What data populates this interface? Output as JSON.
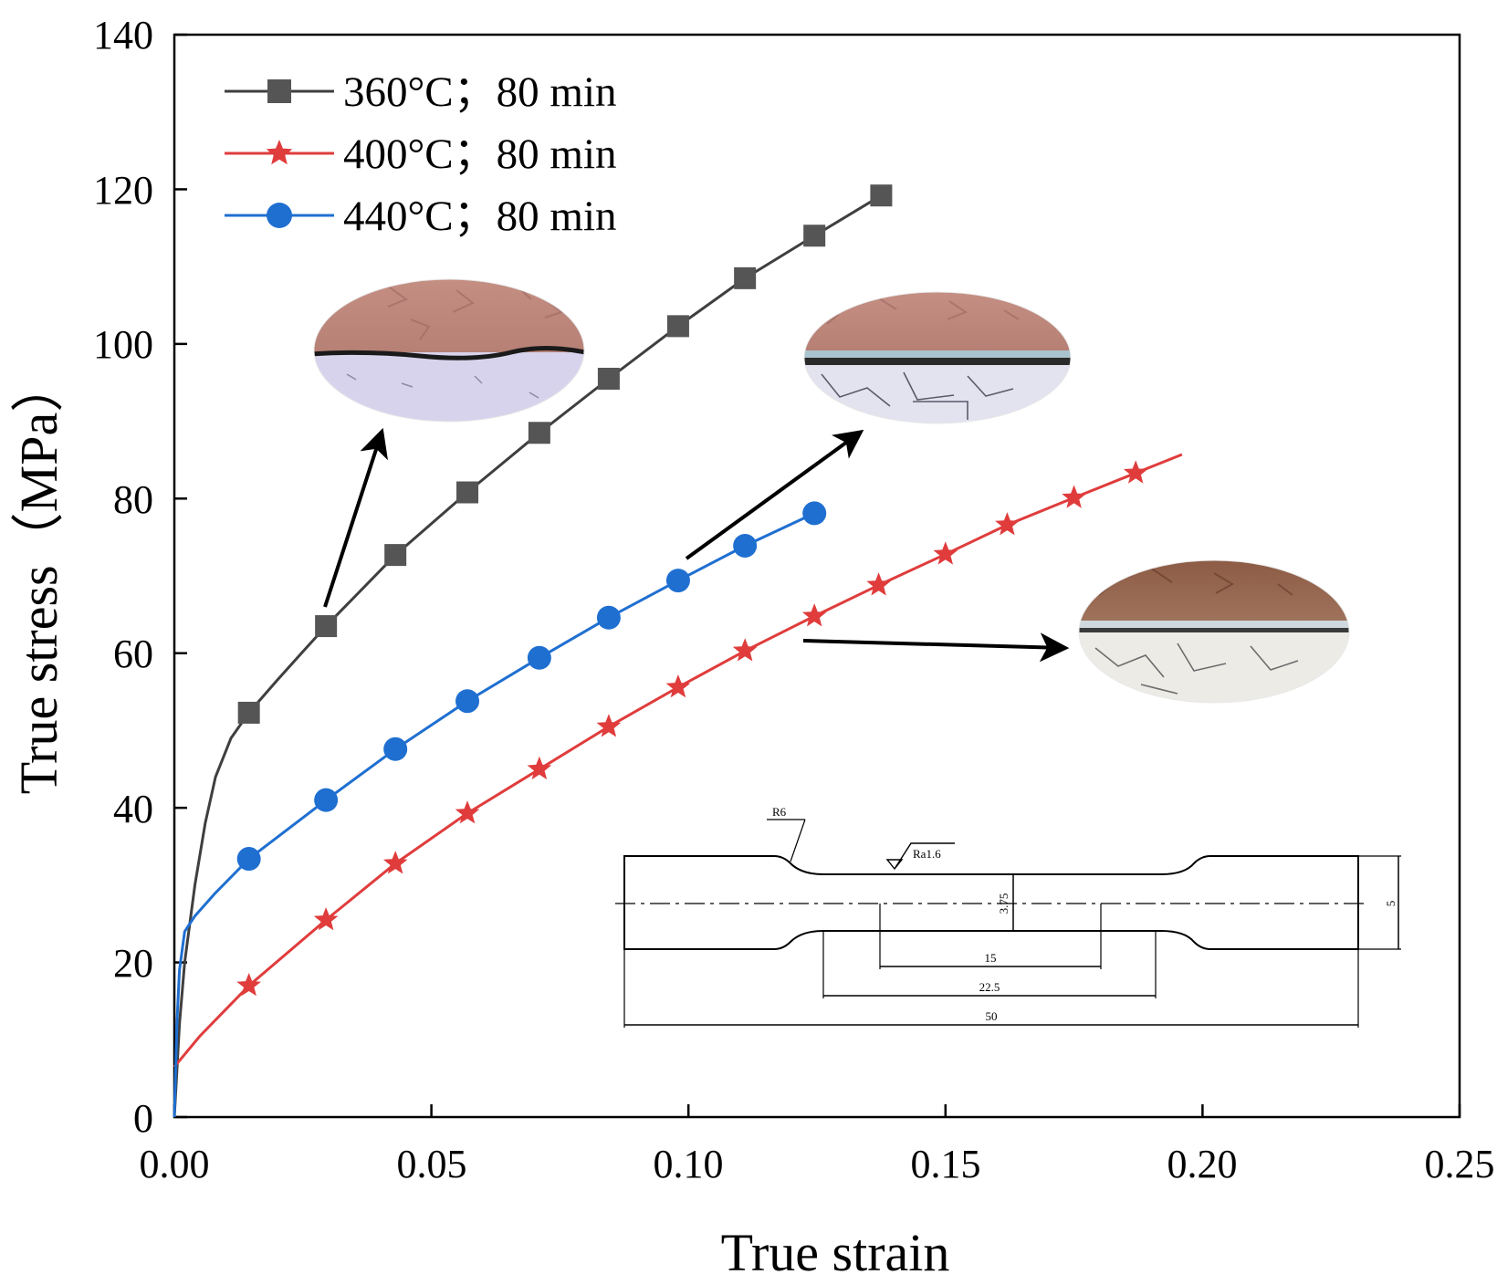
{
  "chart_data": {
    "type": "line",
    "xlabel": "True strain",
    "ylabel": "True stress（MPa）",
    "xlim": [
      0,
      0.25
    ],
    "ylim": [
      0,
      140
    ],
    "xticks": [
      "0.00",
      "0.05",
      "0.10",
      "0.15",
      "0.20",
      "0.25"
    ],
    "yticks": [
      "0",
      "20",
      "40",
      "60",
      "80",
      "100",
      "120",
      "140"
    ],
    "legend_position": "top-left",
    "series": [
      {
        "name": "360°C；80 min",
        "color": "#3f3f3f",
        "marker": "square",
        "curve": [
          [
            0,
            0
          ],
          [
            0.001,
            12
          ],
          [
            0.002,
            20
          ],
          [
            0.004,
            30
          ],
          [
            0.006,
            38
          ],
          [
            0.008,
            44
          ],
          [
            0.011,
            49
          ],
          [
            0.0145,
            52.3
          ],
          [
            0.02,
            56.5
          ],
          [
            0.025,
            60.2
          ],
          [
            0.0295,
            63.5
          ],
          [
            0.043,
            72.7
          ],
          [
            0.057,
            80.8
          ],
          [
            0.071,
            88.5
          ],
          [
            0.0845,
            95.5
          ],
          [
            0.098,
            102.3
          ],
          [
            0.111,
            108.5
          ],
          [
            0.1245,
            114
          ],
          [
            0.1375,
            119.2
          ]
        ],
        "markers": [
          [
            0.0145,
            52.3
          ],
          [
            0.0295,
            63.5
          ],
          [
            0.043,
            72.7
          ],
          [
            0.057,
            80.8
          ],
          [
            0.071,
            88.5
          ],
          [
            0.0845,
            95.5
          ],
          [
            0.098,
            102.3
          ],
          [
            0.111,
            108.5
          ],
          [
            0.1245,
            114
          ],
          [
            0.1375,
            119.2
          ]
        ]
      },
      {
        "name": "400°C；80 min",
        "color": "#e03c3c",
        "marker": "star",
        "curve": [
          [
            0,
            6.5
          ],
          [
            0.005,
            10.5
          ],
          [
            0.0145,
            17
          ],
          [
            0.0295,
            25.5
          ],
          [
            0.043,
            32.8
          ],
          [
            0.057,
            39.3
          ],
          [
            0.071,
            45
          ],
          [
            0.0845,
            50.5
          ],
          [
            0.098,
            55.6
          ],
          [
            0.111,
            60.3
          ],
          [
            0.1245,
            64.8
          ],
          [
            0.137,
            68.8
          ],
          [
            0.15,
            72.8
          ],
          [
            0.162,
            76.6
          ],
          [
            0.175,
            80.1
          ],
          [
            0.187,
            83.3
          ],
          [
            0.196,
            85.7
          ]
        ],
        "markers": [
          [
            0.0145,
            17
          ],
          [
            0.0295,
            25.5
          ],
          [
            0.043,
            32.8
          ],
          [
            0.057,
            39.3
          ],
          [
            0.071,
            45
          ],
          [
            0.0845,
            50.5
          ],
          [
            0.098,
            55.6
          ],
          [
            0.111,
            60.3
          ],
          [
            0.1245,
            64.8
          ],
          [
            0.137,
            68.8
          ],
          [
            0.15,
            72.8
          ],
          [
            0.162,
            76.6
          ],
          [
            0.175,
            80.1
          ],
          [
            0.187,
            83.3
          ]
        ]
      },
      {
        "name": "440°C；80 min",
        "color": "#1f6fd1",
        "marker": "circle",
        "curve": [
          [
            0,
            0
          ],
          [
            0.0005,
            12
          ],
          [
            0.001,
            19
          ],
          [
            0.002,
            24
          ],
          [
            0.004,
            26
          ],
          [
            0.008,
            29
          ],
          [
            0.0145,
            33.4
          ],
          [
            0.0295,
            41
          ],
          [
            0.043,
            47.6
          ],
          [
            0.057,
            53.8
          ],
          [
            0.071,
            59.4
          ],
          [
            0.0845,
            64.6
          ],
          [
            0.098,
            69.4
          ],
          [
            0.111,
            73.9
          ],
          [
            0.1245,
            78.1
          ],
          [
            0.126,
            78.4
          ]
        ],
        "markers": [
          [
            0.0145,
            33.4
          ],
          [
            0.0295,
            41
          ],
          [
            0.043,
            47.6
          ],
          [
            0.057,
            53.8
          ],
          [
            0.071,
            59.4
          ],
          [
            0.0845,
            64.6
          ],
          [
            0.098,
            69.4
          ],
          [
            0.111,
            73.9
          ],
          [
            0.1245,
            78.1
          ]
        ]
      }
    ],
    "specimen_dimensions": {
      "radius": "R6",
      "roughness": "Ra1.6",
      "thickness": "3.75",
      "width": "5",
      "gauge_length": "15",
      "parallel_length": "22.5",
      "total_length": "50"
    }
  }
}
